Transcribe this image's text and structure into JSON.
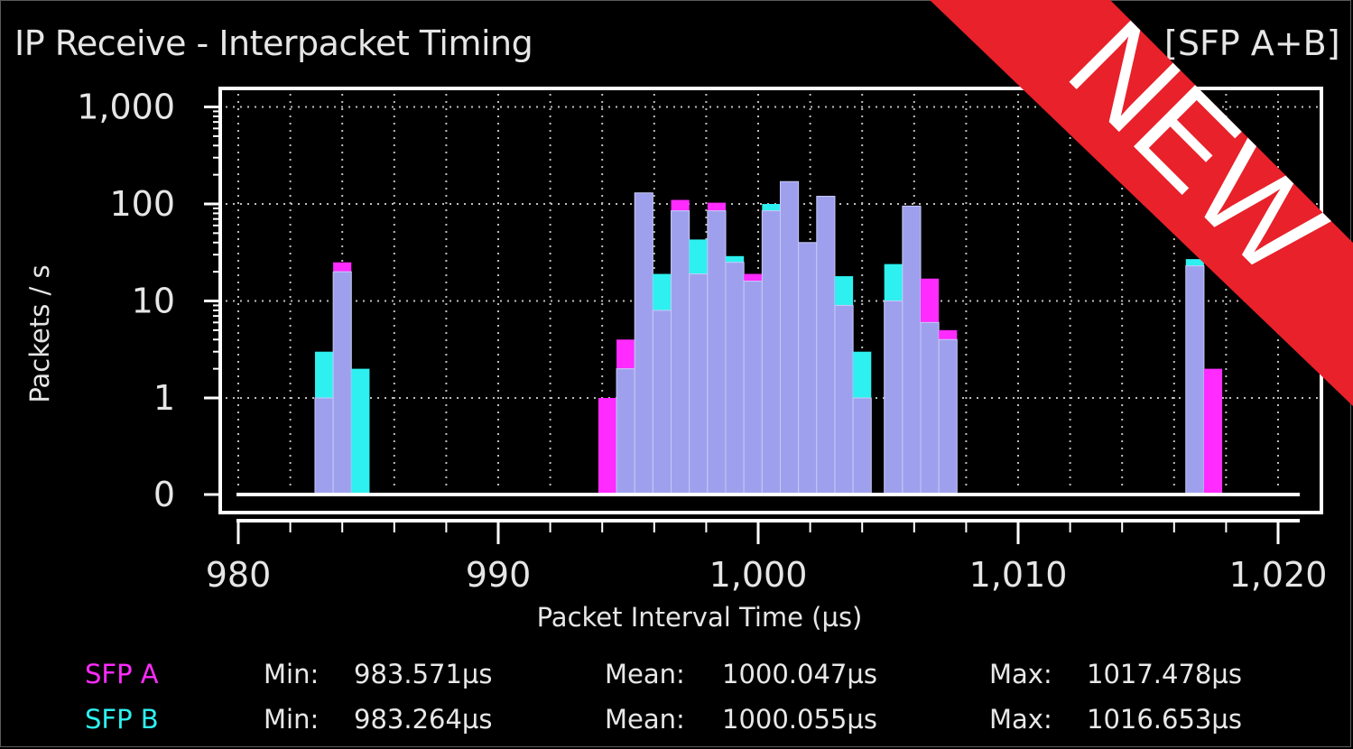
{
  "title": "IP Receive - Interpacket Timing",
  "title_right": "[SFP A+B]",
  "badge": "NEW",
  "colors": {
    "sfp_a": "#ff2bff",
    "sfp_b": "#2ef0f0",
    "combined": "#9ea0ee",
    "badge": "#e8212a",
    "background": "#000000"
  },
  "stats": {
    "sfp_a": {
      "name": "SFP A",
      "min_label": "Min:",
      "min": "983.571µs",
      "mean_label": "Mean:",
      "mean": "1000.047µs",
      "max_label": "Max:",
      "max": "1017.478µs"
    },
    "sfp_b": {
      "name": "SFP B",
      "min_label": "Min:",
      "min": "983.264µs",
      "mean_label": "Mean:",
      "mean": "1000.055µs",
      "max_label": "Max:",
      "max": "1016.653µs"
    }
  },
  "chart_data": {
    "type": "bar",
    "xlabel": "Packet Interval Time (µs)",
    "ylabel": "Packets / s",
    "xlim": [
      980,
      1021
    ],
    "x_ticks": [
      980,
      990,
      1000,
      1010,
      1020
    ],
    "x_tick_labels": [
      "980",
      "990",
      "1,000",
      "1,010",
      "1,020"
    ],
    "y_scale": "log",
    "y_ticks": [
      0,
      1,
      10,
      100,
      1000
    ],
    "y_tick_labels": [
      "0",
      "1",
      "10",
      "100",
      "1,000"
    ],
    "grid": true,
    "bin_width": 0.7,
    "stacking": "bottom segment is the combined value; top segment colored by the SFP stream with the higher count",
    "bins": [
      {
        "x": 983.3,
        "base": 1,
        "top": 3,
        "top_series": "SFP B"
      },
      {
        "x": 984.0,
        "base": 20,
        "top": 25,
        "top_series": "SFP A"
      },
      {
        "x": 984.7,
        "base": 0,
        "top": 2,
        "top_series": "SFP B"
      },
      {
        "x": 994.2,
        "base": 0,
        "top": 1,
        "top_series": "SFP A"
      },
      {
        "x": 994.9,
        "base": 2,
        "top": 4,
        "top_series": "SFP A"
      },
      {
        "x": 995.6,
        "base": 130,
        "top": 130,
        "top_series": "SFP A"
      },
      {
        "x": 996.3,
        "base": 8,
        "top": 19,
        "top_series": "SFP B"
      },
      {
        "x": 997.0,
        "base": 85,
        "top": 110,
        "top_series": "SFP A"
      },
      {
        "x": 997.7,
        "base": 19,
        "top": 43,
        "top_series": "SFP B"
      },
      {
        "x": 998.4,
        "base": 85,
        "top": 103,
        "top_series": "SFP A"
      },
      {
        "x": 999.1,
        "base": 25,
        "top": 29,
        "top_series": "SFP B"
      },
      {
        "x": 999.8,
        "base": 16,
        "top": 19,
        "top_series": "SFP A"
      },
      {
        "x": 1000.5,
        "base": 85,
        "top": 100,
        "top_series": "SFP B"
      },
      {
        "x": 1001.2,
        "base": 170,
        "top": 170,
        "top_series": "SFP A"
      },
      {
        "x": 1001.9,
        "base": 40,
        "top": 40,
        "top_series": "SFP A"
      },
      {
        "x": 1002.6,
        "base": 120,
        "top": 120,
        "top_series": "SFP A"
      },
      {
        "x": 1003.3,
        "base": 9,
        "top": 18,
        "top_series": "SFP B"
      },
      {
        "x": 1004.0,
        "base": 1,
        "top": 3,
        "top_series": "SFP B"
      },
      {
        "x": 1005.2,
        "base": 10,
        "top": 24,
        "top_series": "SFP B"
      },
      {
        "x": 1005.9,
        "base": 95,
        "top": 95,
        "top_series": "SFP A"
      },
      {
        "x": 1006.6,
        "base": 6,
        "top": 17,
        "top_series": "SFP A"
      },
      {
        "x": 1007.3,
        "base": 4,
        "top": 5,
        "top_series": "SFP A"
      },
      {
        "x": 1016.8,
        "base": 23,
        "top": 27,
        "top_series": "SFP B"
      },
      {
        "x": 1017.5,
        "base": 0,
        "top": 2,
        "top_series": "SFP A"
      }
    ]
  }
}
